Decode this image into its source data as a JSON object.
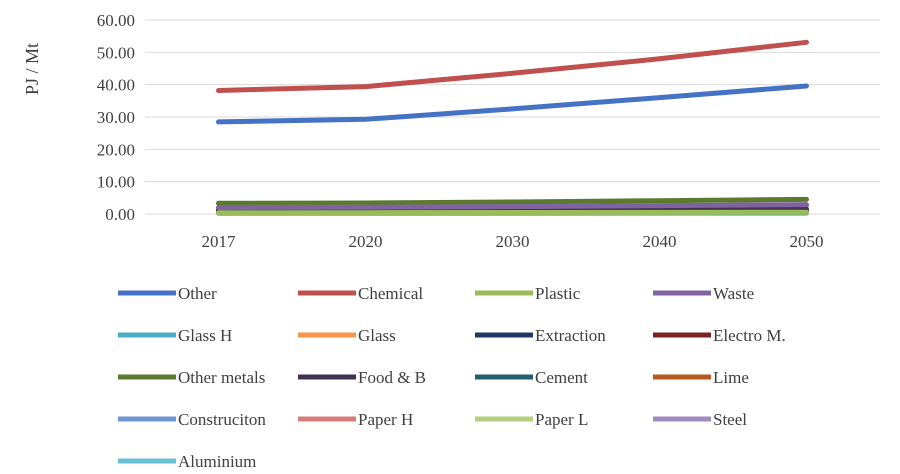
{
  "chart_data": {
    "type": "line",
    "title": "",
    "xlabel": "",
    "ylabel": "PJ / Mt",
    "categories": [
      "2017",
      "2020",
      "2030",
      "2040",
      "2050"
    ],
    "y_ticks": [
      "0.00",
      "10.00",
      "20.00",
      "30.00",
      "40.00",
      "50.00",
      "60.00"
    ],
    "ylim": [
      0,
      60
    ],
    "grid": "horizontal",
    "legend_position": "bottom",
    "series": [
      {
        "name": "Other",
        "color": "#4472C4",
        "values": [
          28.5,
          29.3,
          32.5,
          36.0,
          39.6
        ]
      },
      {
        "name": "Chemical",
        "color": "#C0504D",
        "values": [
          38.2,
          39.4,
          43.5,
          48.0,
          53.1
        ]
      },
      {
        "name": "Plastic",
        "color": "#9BBB59",
        "values": [
          0.4,
          0.4,
          0.45,
          0.5,
          0.55
        ]
      },
      {
        "name": "Waste",
        "color": "#8064A2",
        "values": [
          2.0,
          2.1,
          2.3,
          2.6,
          2.9
        ]
      },
      {
        "name": "Glass H",
        "color": "#4BACC6",
        "values": [
          0.3,
          0.3,
          0.35,
          0.4,
          0.4
        ]
      },
      {
        "name": "Glass",
        "color": "#F79646",
        "values": [
          0.2,
          0.2,
          0.2,
          0.25,
          0.25
        ]
      },
      {
        "name": "Extraction",
        "color": "#1F3864",
        "values": [
          0.5,
          0.5,
          0.55,
          0.6,
          0.65
        ]
      },
      {
        "name": "Electro M.",
        "color": "#7B2222",
        "values": [
          0.6,
          0.6,
          0.65,
          0.7,
          0.75
        ]
      },
      {
        "name": "Other metals",
        "color": "#5B7A2E",
        "values": [
          3.3,
          3.4,
          3.7,
          4.1,
          4.5
        ]
      },
      {
        "name": "Food & B",
        "color": "#403151",
        "values": [
          1.2,
          1.2,
          1.3,
          1.4,
          1.5
        ]
      },
      {
        "name": "Cement",
        "color": "#215F6E",
        "values": [
          0.8,
          0.8,
          0.85,
          0.9,
          0.95
        ]
      },
      {
        "name": "Lime",
        "color": "#B35A1F",
        "values": [
          0.5,
          0.5,
          0.5,
          0.55,
          0.6
        ]
      },
      {
        "name": "Construciton",
        "color": "#7096D1",
        "values": [
          0.7,
          0.7,
          0.75,
          0.8,
          0.85
        ]
      },
      {
        "name": "Paper H",
        "color": "#D57C7A",
        "values": [
          0.9,
          0.9,
          1.0,
          1.1,
          1.2
        ]
      },
      {
        "name": "Paper L",
        "color": "#B3CF7F",
        "values": [
          0.4,
          0.4,
          0.45,
          0.5,
          0.5
        ]
      },
      {
        "name": "Steel",
        "color": "#A18BBE",
        "values": [
          1.8,
          1.9,
          2.1,
          2.3,
          2.5
        ]
      },
      {
        "name": "Aluminium",
        "color": "#6CC0D6",
        "values": [
          0.3,
          0.3,
          0.3,
          0.35,
          0.4
        ]
      }
    ]
  }
}
